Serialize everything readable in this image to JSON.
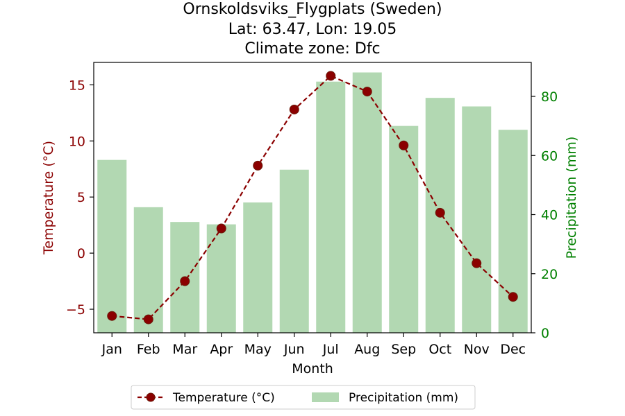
{
  "chart_data": {
    "type": "bar+line",
    "title_lines": [
      "Ornskoldsviks_Flygplats (Sweden)",
      "Lat: 63.47, Lon: 19.05",
      "Climate zone: Dfc"
    ],
    "xlabel": "Month",
    "ylabel_left": "Temperature (°C)",
    "ylabel_right": "Precipitation (mm)",
    "categories": [
      "Jan",
      "Feb",
      "Mar",
      "Apr",
      "May",
      "Jun",
      "Jul",
      "Aug",
      "Sep",
      "Oct",
      "Nov",
      "Dec"
    ],
    "series": [
      {
        "name": "Temperature (°C)",
        "kind": "line",
        "axis": "left",
        "values": [
          -5.6,
          -5.9,
          -2.5,
          2.2,
          7.8,
          12.8,
          15.8,
          14.4,
          9.6,
          3.6,
          -0.9,
          -3.9
        ]
      },
      {
        "name": "Precipitation (mm)",
        "kind": "bar",
        "axis": "right",
        "values": [
          58.5,
          42.5,
          37.5,
          36.7,
          44.1,
          55.2,
          85.0,
          88.1,
          70.0,
          79.5,
          76.6,
          68.7
        ]
      }
    ],
    "ylim_left": [
      -7.1,
      17.0
    ],
    "ylim_right": [
      0,
      91.5
    ],
    "yticks_left": [
      -5,
      0,
      5,
      10,
      15
    ],
    "yticks_right": [
      0,
      20,
      40,
      60,
      80
    ],
    "yticks_left_labels": [
      "−5",
      "0",
      "5",
      "10",
      "15"
    ],
    "yticks_right_labels": [
      "0",
      "20",
      "40",
      "60",
      "80"
    ],
    "grid": false,
    "legend_placement": "bottom-center"
  },
  "colors": {
    "temperature": "#8b0000",
    "marker_edge": "#6b1a0a",
    "precipitation_bar": "#b2d8b2",
    "precipitation_axis": "#008000",
    "axis": "#000000"
  }
}
